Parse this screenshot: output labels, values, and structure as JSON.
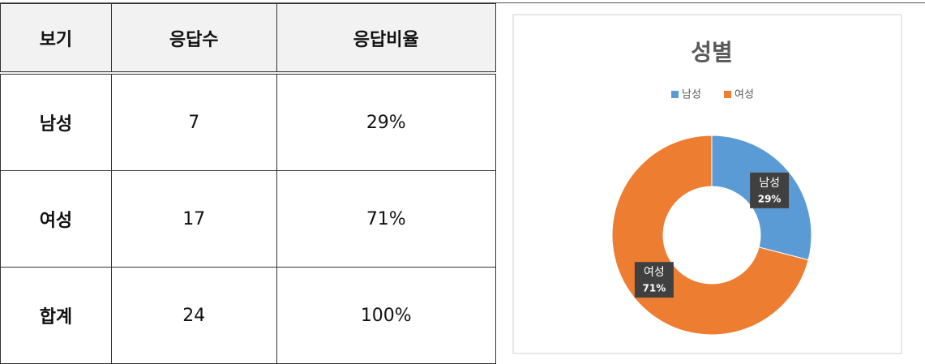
{
  "table": {
    "header": [
      "보기",
      "응답수",
      "응답비율"
    ],
    "rows": [
      [
        "남성",
        "7",
        "29%"
      ],
      [
        "여성",
        "17",
        "71%"
      ],
      [
        "합계",
        "24",
        "100%"
      ]
    ]
  },
  "chart_data": {
    "type": "donut",
    "title": "성별",
    "categories": [
      "남성",
      "여성"
    ],
    "values": [
      29,
      71
    ],
    "value_labels": [
      "29%",
      "71%"
    ],
    "colors": [
      "#5b9bd5",
      "#ed7d31"
    ],
    "legend": "top"
  }
}
